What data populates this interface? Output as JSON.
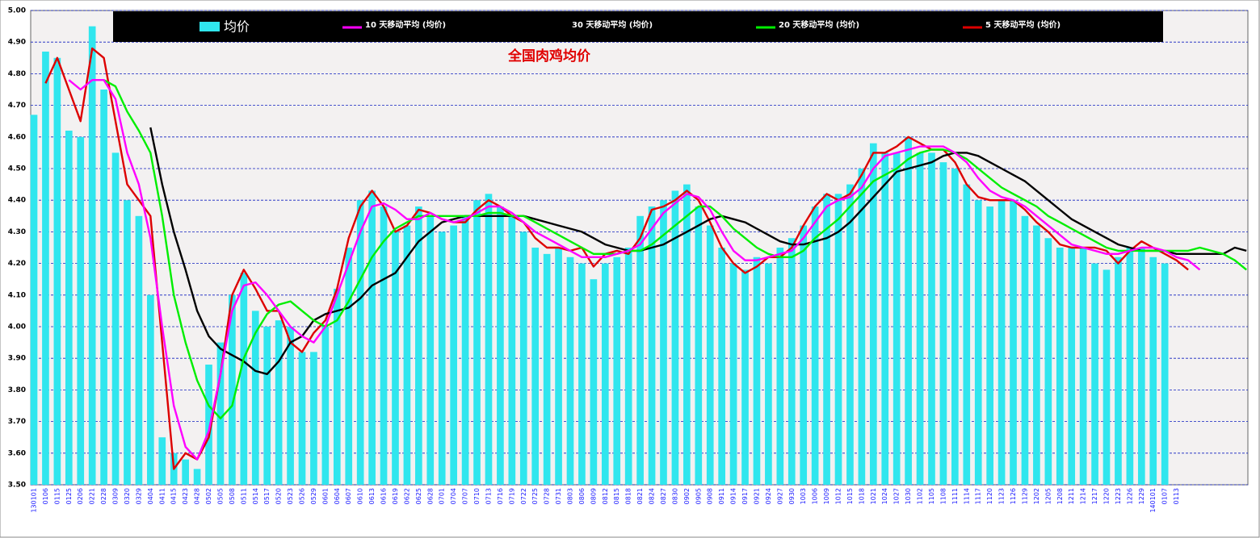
{
  "chart_data": {
    "type": "combo",
    "title": "全国肉鸡均价",
    "categories": [
      "130101",
      "0106",
      "0115",
      "0125",
      "0206",
      "0221",
      "0228",
      "0309",
      "0320",
      "0329",
      "0404",
      "0411",
      "0415",
      "0423",
      "0428",
      "0502",
      "0505",
      "0508",
      "0511",
      "0514",
      "0517",
      "0520",
      "0523",
      "0526",
      "0529",
      "0601",
      "0604",
      "0607",
      "0610",
      "0613",
      "0616",
      "0619",
      "0622",
      "0625",
      "0628",
      "0701",
      "0704",
      "0707",
      "0710",
      "0713",
      "0716",
      "0719",
      "0722",
      "0725",
      "0728",
      "0731",
      "0803",
      "0806",
      "0809",
      "0812",
      "0815",
      "0818",
      "0821",
      "0824",
      "0827",
      "0830",
      "0902",
      "0905",
      "0908",
      "0911",
      "0914",
      "0917",
      "0921",
      "0924",
      "0927",
      "0930",
      "1003",
      "1006",
      "1009",
      "1012",
      "1015",
      "1018",
      "1021",
      "1024",
      "1027",
      "1030",
      "1102",
      "1105",
      "1108",
      "1111",
      "1114",
      "1117",
      "1120",
      "1123",
      "1126",
      "1129",
      "1202",
      "1205",
      "1208",
      "1211",
      "1214",
      "1217",
      "1220",
      "1223",
      "1226",
      "1229",
      "140101",
      "0107",
      "0113",
      null,
      null,
      null,
      null,
      null,
      null
    ],
    "ylim": [
      3.5,
      5.0
    ],
    "yticks": [
      {
        "value": 3.5,
        "label": "3.50"
      },
      {
        "value": 3.6,
        "label": "3.60"
      },
      {
        "value": 3.7,
        "label": "3.70"
      },
      {
        "value": 3.8,
        "label": "3.80"
      },
      {
        "value": 3.9,
        "label": "3.90"
      },
      {
        "value": 4.0,
        "label": "4.00"
      },
      {
        "value": 4.1,
        "label": "4.10"
      },
      {
        "value": 4.2,
        "label": "4.20"
      },
      {
        "value": 4.3,
        "label": "4.30"
      },
      {
        "value": 4.4,
        "label": "4.40"
      },
      {
        "value": 4.5,
        "label": "4.50"
      },
      {
        "value": 4.6,
        "label": "4.60"
      },
      {
        "value": 4.7,
        "label": "4.70"
      },
      {
        "value": 4.8,
        "label": "4.80"
      },
      {
        "value": 4.9,
        "label": "4.90"
      },
      {
        "value": 5.0,
        "label": "5.00"
      }
    ],
    "grid": true,
    "series": [
      {
        "name": "均价",
        "type": "bar",
        "color": "#30e6ee",
        "values": [
          4.67,
          4.87,
          4.85,
          4.62,
          4.6,
          4.95,
          4.75,
          4.55,
          4.4,
          4.35,
          4.1,
          3.65,
          3.6,
          3.58,
          3.55,
          3.88,
          3.95,
          4.1,
          4.17,
          4.05,
          4.0,
          4.02,
          4.0,
          3.92,
          3.92,
          4.0,
          4.12,
          4.25,
          4.4,
          4.43,
          4.38,
          4.3,
          4.32,
          4.38,
          4.35,
          4.3,
          4.32,
          4.35,
          4.4,
          4.42,
          4.38,
          4.35,
          4.3,
          4.25,
          4.23,
          4.25,
          4.22,
          4.2,
          4.15,
          4.2,
          4.22,
          4.25,
          4.35,
          4.38,
          4.4,
          4.43,
          4.45,
          4.38,
          4.32,
          4.25,
          4.2,
          4.18,
          4.22,
          4.2,
          4.25,
          4.28,
          4.32,
          4.38,
          4.42,
          4.42,
          4.45,
          4.5,
          4.58,
          4.55,
          4.55,
          4.6,
          4.55,
          4.55,
          4.52,
          4.5,
          4.45,
          4.4,
          4.38,
          4.4,
          4.4,
          4.35,
          4.32,
          4.28,
          4.25,
          4.25,
          4.25,
          4.2,
          4.18,
          4.22,
          4.25,
          4.25,
          4.22,
          4.2,
          null,
          null,
          null,
          null,
          null,
          null,
          null
        ]
      },
      {
        "name": "10 天移动平均 (均价)",
        "type": "line",
        "color": "#ff00ff",
        "values": [
          null,
          null,
          null,
          4.78,
          4.75,
          4.78,
          4.78,
          4.72,
          4.55,
          4.45,
          4.28,
          4.0,
          3.75,
          3.62,
          3.58,
          3.67,
          3.85,
          4.05,
          4.13,
          4.14,
          4.1,
          4.05,
          4.0,
          3.97,
          3.95,
          4.0,
          4.1,
          4.2,
          4.3,
          4.38,
          4.39,
          4.37,
          4.34,
          4.34,
          4.36,
          4.34,
          4.33,
          4.34,
          4.36,
          4.38,
          4.38,
          4.36,
          4.33,
          4.3,
          4.28,
          4.26,
          4.24,
          4.22,
          4.22,
          4.22,
          4.23,
          4.24,
          4.26,
          4.31,
          4.36,
          4.39,
          4.42,
          4.41,
          4.37,
          4.3,
          4.24,
          4.21,
          4.21,
          4.22,
          4.23,
          4.24,
          4.28,
          4.33,
          4.38,
          4.4,
          4.41,
          4.44,
          4.5,
          4.54,
          4.55,
          4.56,
          4.57,
          4.57,
          4.57,
          4.55,
          4.52,
          4.47,
          4.43,
          4.41,
          4.4,
          4.38,
          4.35,
          4.32,
          4.29,
          4.26,
          4.25,
          4.24,
          4.23,
          4.23,
          4.24,
          4.25,
          4.25,
          4.24,
          4.22,
          4.21,
          4.18,
          null,
          null,
          null,
          null
        ]
      },
      {
        "name": "30 天移动平均 (均价)",
        "type": "line",
        "color": "#000000",
        "values": [
          null,
          null,
          null,
          null,
          null,
          null,
          null,
          null,
          null,
          null,
          4.63,
          4.45,
          4.3,
          4.18,
          4.05,
          3.97,
          3.93,
          3.91,
          3.89,
          3.86,
          3.85,
          3.89,
          3.95,
          3.97,
          4.02,
          4.04,
          4.05,
          4.06,
          4.09,
          4.13,
          4.15,
          4.17,
          4.22,
          4.27,
          4.3,
          4.33,
          4.34,
          4.35,
          4.35,
          4.35,
          4.35,
          4.35,
          4.35,
          4.34,
          4.33,
          4.32,
          4.31,
          4.3,
          4.28,
          4.26,
          4.25,
          4.24,
          4.24,
          4.25,
          4.26,
          4.28,
          4.3,
          4.32,
          4.34,
          4.35,
          4.34,
          4.33,
          4.31,
          4.29,
          4.27,
          4.26,
          4.26,
          4.27,
          4.28,
          4.3,
          4.33,
          4.37,
          4.41,
          4.45,
          4.49,
          4.5,
          4.51,
          4.52,
          4.54,
          4.55,
          4.55,
          4.54,
          4.52,
          4.5,
          4.48,
          4.46,
          4.43,
          4.4,
          4.37,
          4.34,
          4.32,
          4.3,
          4.28,
          4.26,
          4.25,
          4.24,
          4.24,
          4.24,
          4.23,
          4.23,
          4.23,
          4.23,
          4.23,
          4.25,
          4.24
        ]
      },
      {
        "name": "20 天移动平均 (均价)",
        "type": "line",
        "color": "#00ee00",
        "values": [
          null,
          null,
          null,
          null,
          null,
          null,
          4.78,
          4.76,
          4.68,
          4.62,
          4.55,
          4.35,
          4.1,
          3.95,
          3.83,
          3.75,
          3.71,
          3.75,
          3.9,
          3.98,
          4.04,
          4.07,
          4.08,
          4.05,
          4.02,
          4.0,
          4.02,
          4.08,
          4.15,
          4.22,
          4.27,
          4.31,
          4.33,
          4.35,
          4.35,
          4.35,
          4.35,
          4.35,
          4.35,
          4.36,
          4.36,
          4.35,
          4.35,
          4.33,
          4.31,
          4.29,
          4.27,
          4.25,
          4.23,
          4.23,
          4.23,
          4.24,
          4.24,
          4.26,
          4.29,
          4.32,
          4.35,
          4.38,
          4.38,
          4.35,
          4.31,
          4.28,
          4.25,
          4.23,
          4.22,
          4.22,
          4.24,
          4.28,
          4.31,
          4.34,
          4.38,
          4.42,
          4.46,
          4.48,
          4.5,
          4.53,
          4.55,
          4.56,
          4.56,
          4.55,
          4.53,
          4.5,
          4.47,
          4.44,
          4.42,
          4.4,
          4.38,
          4.35,
          4.33,
          4.31,
          4.29,
          4.27,
          4.25,
          4.24,
          4.24,
          4.24,
          4.24,
          4.24,
          4.24,
          4.24,
          4.25,
          4.24,
          4.23,
          4.21,
          4.18
        ]
      },
      {
        "name": "5 天移动平均 (均价)",
        "type": "line",
        "color": "#dd0000",
        "values": [
          null,
          4.77,
          4.85,
          4.75,
          4.65,
          4.88,
          4.85,
          4.65,
          4.45,
          4.4,
          4.35,
          3.95,
          3.55,
          3.6,
          3.58,
          3.65,
          3.85,
          4.1,
          4.18,
          4.12,
          4.05,
          4.05,
          3.95,
          3.92,
          3.98,
          4.02,
          4.12,
          4.28,
          4.38,
          4.43,
          4.38,
          4.3,
          4.32,
          4.37,
          4.36,
          4.34,
          4.33,
          4.33,
          4.37,
          4.4,
          4.38,
          4.35,
          4.33,
          4.28,
          4.25,
          4.25,
          4.24,
          4.25,
          4.19,
          4.23,
          4.24,
          4.23,
          4.28,
          4.37,
          4.38,
          4.4,
          4.43,
          4.4,
          4.33,
          4.25,
          4.2,
          4.17,
          4.19,
          4.22,
          4.22,
          4.25,
          4.32,
          4.38,
          4.42,
          4.4,
          4.42,
          4.48,
          4.55,
          4.55,
          4.57,
          4.6,
          4.58,
          4.56,
          4.56,
          4.52,
          4.45,
          4.41,
          4.4,
          4.4,
          4.4,
          4.37,
          4.33,
          4.3,
          4.26,
          4.25,
          4.25,
          4.25,
          4.24,
          4.2,
          4.24,
          4.27,
          4.25,
          4.23,
          4.21,
          4.18,
          null,
          null,
          null,
          null,
          null
        ]
      }
    ]
  }
}
